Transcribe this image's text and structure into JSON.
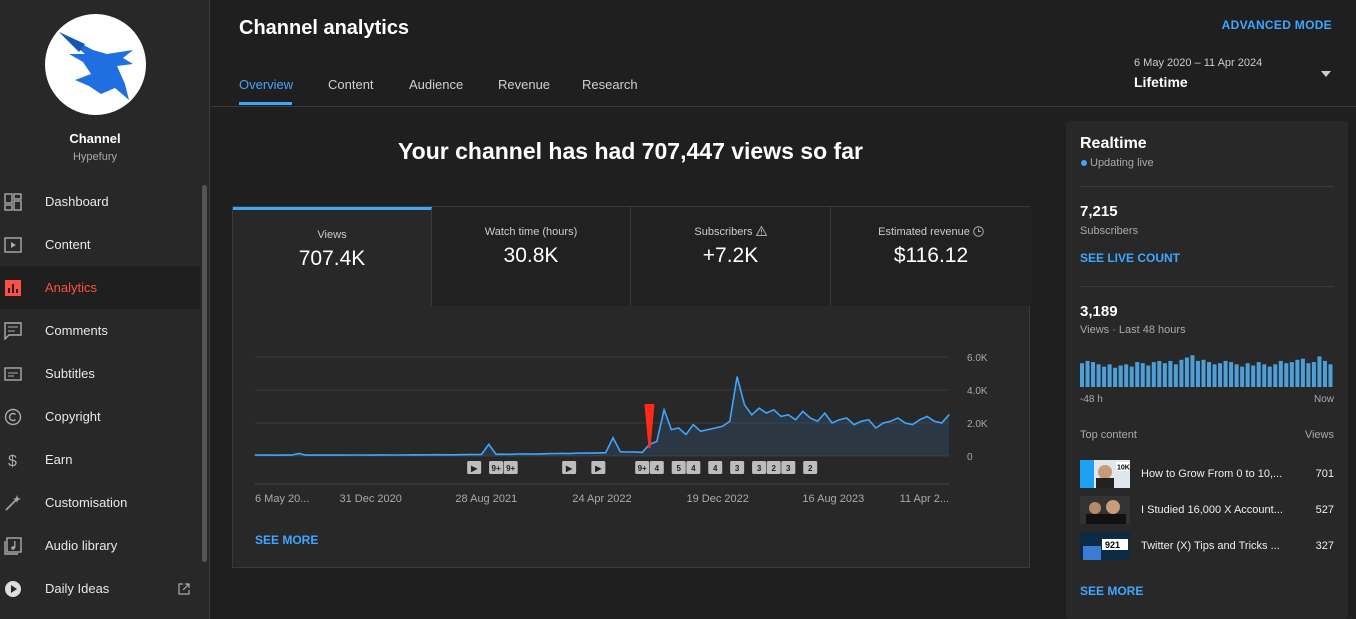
{
  "sidebar": {
    "channel_title": "Channel",
    "channel_name": "Hypefury",
    "items": [
      {
        "label": "Dashboard",
        "icon": "dashboard-icon"
      },
      {
        "label": "Content",
        "icon": "content-icon"
      },
      {
        "label": "Analytics",
        "icon": "analytics-icon",
        "active": true
      },
      {
        "label": "Comments",
        "icon": "comments-icon"
      },
      {
        "label": "Subtitles",
        "icon": "subtitles-icon"
      },
      {
        "label": "Copyright",
        "icon": "copyright-icon"
      },
      {
        "label": "Earn",
        "icon": "earn-icon"
      },
      {
        "label": "Customisation",
        "icon": "customisation-icon"
      },
      {
        "label": "Audio library",
        "icon": "audio-library-icon"
      },
      {
        "label": "Daily Ideas",
        "icon": "daily-ideas-icon",
        "external": true
      }
    ]
  },
  "header": {
    "title": "Channel analytics",
    "advanced_mode": "ADVANCED MODE",
    "tabs": [
      "Overview",
      "Content",
      "Audience",
      "Revenue",
      "Research"
    ],
    "date_range": "6 May 2020 – 11 Apr 2024",
    "date_label": "Lifetime"
  },
  "main": {
    "headline": "Your channel has had 707,447 views so far",
    "stats": [
      {
        "label": "Views",
        "value": "707.4K",
        "active": true
      },
      {
        "label": "Watch time (hours)",
        "value": "30.8K"
      },
      {
        "label": "Subscribers",
        "value": "+7.2K",
        "icon": "warning-icon"
      },
      {
        "label": "Estimated revenue",
        "value": "$116.12",
        "icon": "clock-icon"
      }
    ],
    "see_more": "SEE MORE"
  },
  "chart_data": {
    "type": "line",
    "series": [
      {
        "name": "Views",
        "values": [
          60,
          52,
          55,
          50,
          58,
          53,
          150,
          56,
          54,
          60,
          55,
          52,
          57,
          62,
          58,
          60,
          55,
          64,
          60,
          58,
          62,
          65,
          70,
          68,
          74,
          80,
          75,
          72,
          78,
          85,
          90,
          95,
          700,
          100,
          110,
          105,
          120,
          130,
          115,
          125,
          140,
          150,
          160,
          145,
          170,
          180,
          175,
          190,
          200,
          1100,
          260,
          240,
          250,
          220,
          700,
          880,
          2800,
          1600,
          1700,
          1300,
          1900,
          1500,
          1600,
          1700,
          1800,
          2100,
          4800,
          3100,
          2500,
          2900,
          2600,
          2800,
          2400,
          2500,
          2200,
          2700,
          2300,
          2100,
          2600,
          2000,
          2200,
          2300,
          1900,
          2100,
          2200,
          1700,
          2000,
          2100,
          2300,
          2000,
          1900,
          2200,
          2400,
          2100,
          2000,
          2500
        ]
      }
    ],
    "x_tick_labels": [
      "6 May 20...",
      "31 Dec 2020",
      "28 Aug 2021",
      "24 Apr 2022",
      "19 Dec 2022",
      "16 Aug 2023",
      "11 Apr 2..."
    ],
    "y_tick_labels": [
      "6.0K",
      "4.0K",
      "2.0K",
      "0"
    ],
    "ylim": [
      0,
      6000
    ],
    "title": "",
    "xlabel": "",
    "ylabel": "",
    "annotations": [
      {
        "index": 54,
        "type": "flag",
        "color": "#ff2a1a"
      }
    ],
    "markers": [
      {
        "index": 30,
        "label": "▶"
      },
      {
        "index": 33,
        "label": "9+"
      },
      {
        "index": 35,
        "label": "9+"
      },
      {
        "index": 43,
        "label": "▶"
      },
      {
        "index": 47,
        "label": "▶"
      },
      {
        "index": 53,
        "label": "9+"
      },
      {
        "index": 55,
        "label": "4"
      },
      {
        "index": 58,
        "label": "5"
      },
      {
        "index": 60,
        "label": "4"
      },
      {
        "index": 63,
        "label": "4"
      },
      {
        "index": 66,
        "label": "3"
      },
      {
        "index": 69,
        "label": "3"
      },
      {
        "index": 71,
        "label": "2"
      },
      {
        "index": 73,
        "label": "3"
      },
      {
        "index": 76,
        "label": "2"
      }
    ]
  },
  "realtime": {
    "title": "Realtime",
    "status": "Updating live",
    "subscribers": "7,215",
    "subscribers_label": "Subscribers",
    "see_live_count": "SEE LIVE COUNT",
    "views": "3,189",
    "views_label": "Views · Last 48 hours",
    "mini_bars": [
      21,
      23,
      22,
      20,
      18,
      20,
      17,
      19,
      20,
      18,
      22,
      21,
      19,
      22,
      23,
      21,
      23,
      20,
      24,
      26,
      28,
      23,
      24,
      22,
      20,
      21,
      23,
      22,
      20,
      18,
      21,
      19,
      22,
      20,
      18,
      20,
      23,
      21,
      22,
      24,
      25,
      21,
      22,
      27,
      23,
      20
    ],
    "mini_left": "-48 h",
    "mini_right": "Now",
    "top_content_label": "Top content",
    "top_content_views_label": "Views",
    "top_content": [
      {
        "title": "How to Grow From 0 to 10,...",
        "views": "701",
        "thumb_badge": "10K"
      },
      {
        "title": "I Studied 16,000 X Account...",
        "views": "527",
        "thumb_badge": ""
      },
      {
        "title": "Twitter (X) Tips and Tricks ...",
        "views": "327",
        "thumb_badge": "921"
      }
    ],
    "see_more": "SEE MORE"
  },
  "colors": {
    "accent": "#3ea6ff",
    "active_nav": "#ff4e45",
    "flag": "#ff2a1a"
  }
}
